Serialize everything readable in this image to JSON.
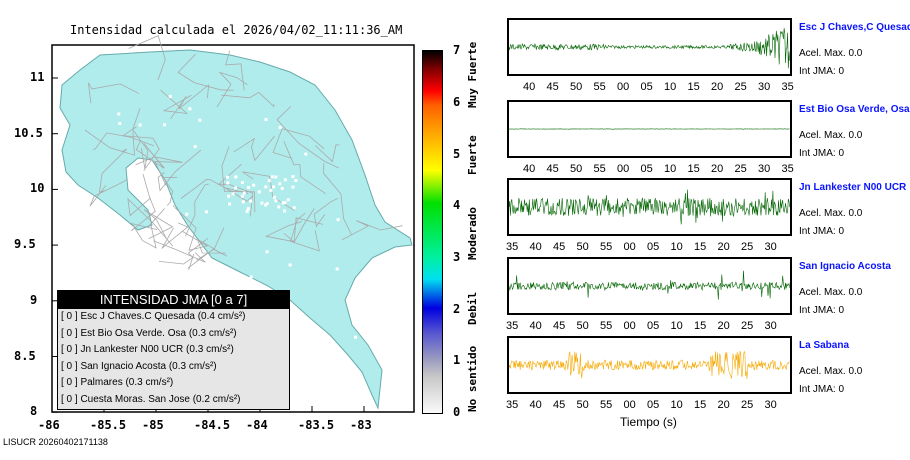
{
  "title": "Intensidad calculada el 2026/04/02_11:11:36_AM",
  "map": {
    "lat_labels": [
      "11",
      "10.5",
      "10",
      "9.5",
      "9",
      "8.5",
      "8"
    ],
    "lon_labels": [
      "-86",
      "-85.5",
      "-85",
      "-84.5",
      "-84",
      "-83.5",
      "-83"
    ],
    "land_color": "#b0ecec"
  },
  "legend": {
    "title": "INTENSIDAD JMA [0 a 7]",
    "rows": [
      "[ 0 ]  Esc J Chaves.C Quesada (0.4 cm/s²)",
      "[ 0 ]  Est Bio Osa Verde. Osa (0.3 cm/s²)",
      "[ 0 ]  Jn Lankester N00 UCR (0.3 cm/s²)",
      "[ 0 ]  San Ignacio Acosta (0.3 cm/s²)",
      "[ 0 ]  Palmares (0.3 cm/s²)",
      "[ 0 ]  Cuesta Moras. San Jose (0.2 cm/s²)"
    ]
  },
  "colorbar": {
    "ticks": [
      "0",
      "1",
      "2",
      "3",
      "4",
      "5",
      "6",
      "7"
    ],
    "words": [
      "No sentido",
      "Debil",
      "Moderado",
      "Fuerte",
      "Muy Fuerte"
    ]
  },
  "stations": [
    {
      "name": "Esc J Chaves,C Quesada",
      "acel": "Acel. Max. 0.0",
      "int": "Int JMA: 0",
      "ticks": [
        "40",
        "45",
        "50",
        "55",
        "00",
        "05",
        "10",
        "15",
        "20",
        "25",
        "30",
        "35"
      ],
      "color": "#006400"
    },
    {
      "name": "Est Bio Osa Verde, Osa",
      "acel": "Acel. Max. 0.0",
      "int": "Int JMA: 0",
      "ticks": [
        "40",
        "45",
        "50",
        "55",
        "00",
        "05",
        "10",
        "15",
        "20",
        "25",
        "30",
        "35"
      ],
      "color": "#006400"
    },
    {
      "name": "Jn Lankester N00 UCR",
      "acel": "Acel. Max. 0.0",
      "int": "Int JMA: 0",
      "ticks": [
        "35",
        "40",
        "45",
        "50",
        "55",
        "00",
        "05",
        "10",
        "15",
        "20",
        "25",
        "30"
      ],
      "color": "#006400"
    },
    {
      "name": "San Ignacio Acosta",
      "acel": "Acel. Max. 0.0",
      "int": "Int JMA: 0",
      "ticks": [
        "35",
        "40",
        "45",
        "50",
        "55",
        "00",
        "05",
        "10",
        "15",
        "20",
        "25",
        "30"
      ],
      "color": "#006400"
    },
    {
      "name": "La Sabana",
      "acel": "Acel. Max. 0.0",
      "int": "Int JMA: 0",
      "ticks": [
        "35",
        "40",
        "45",
        "50",
        "55",
        "00",
        "05",
        "10",
        "15",
        "20",
        "25",
        "30"
      ],
      "color": "#f5a800"
    }
  ],
  "xlabel": "Tiempo (s)",
  "footer": "LISUCR 20260402171138"
}
